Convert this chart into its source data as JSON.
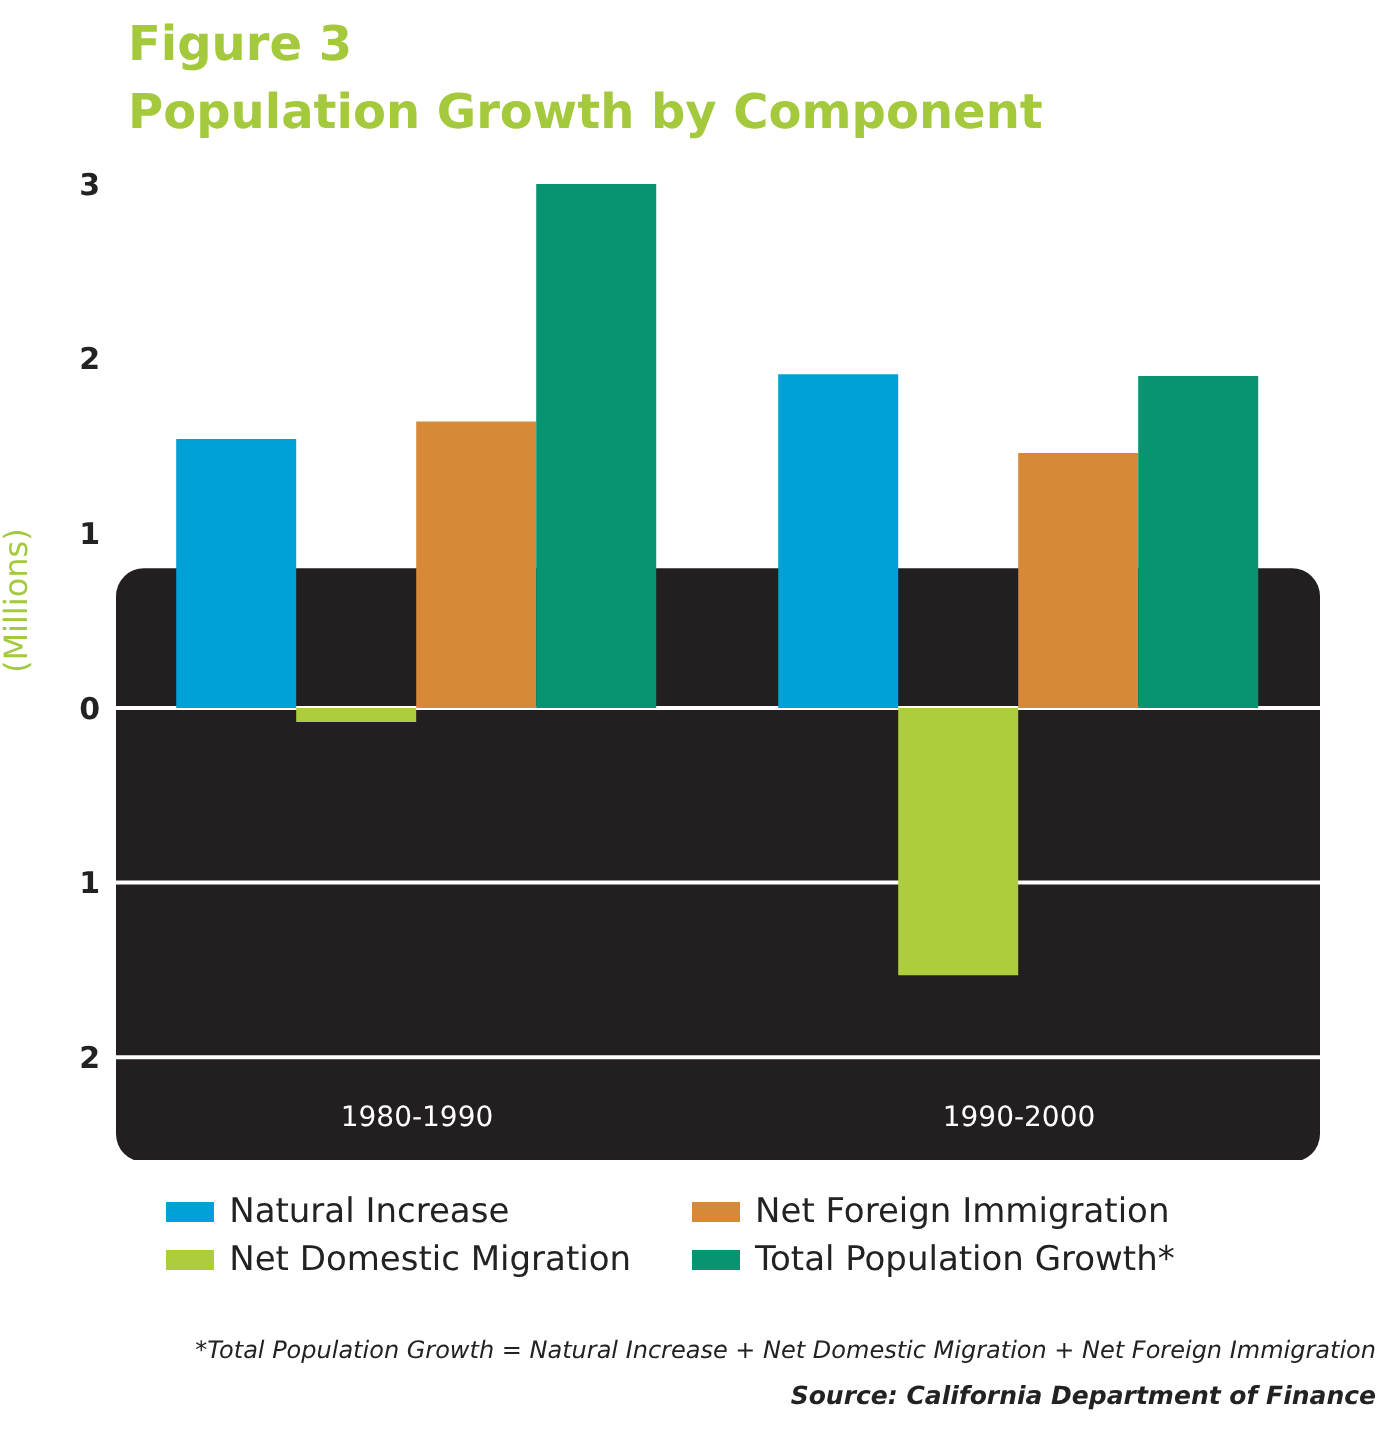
{
  "chart_data": {
    "type": "bar",
    "title": "Figure 3",
    "subtitle": "Population Growth by Component",
    "ylabel": "(Millions)",
    "categories": [
      "1980-1990",
      "1990-2000"
    ],
    "series": [
      {
        "name": "Natural Increase",
        "color": "#00a1d6",
        "values": [
          1.54,
          1.91
        ]
      },
      {
        "name": "Net Domestic Migration",
        "color": "#aecd3c",
        "values": [
          -0.08,
          -1.53
        ]
      },
      {
        "name": "Net Foreign Immigration",
        "color": "#d78939",
        "values": [
          1.64,
          1.46
        ]
      },
      {
        "name": "Total Population Growth*",
        "color": "#069471",
        "values": [
          3.0,
          1.9
        ]
      }
    ],
    "bands": [
      {
        "axis": "y",
        "from": -2.6,
        "to": 0.8,
        "color": "#231f20"
      }
    ],
    "ylim": [
      -2.6,
      3
    ],
    "yticks": [
      {
        "value": -2,
        "label": "2"
      },
      {
        "value": -1,
        "label": "1"
      },
      0,
      1,
      2,
      3
    ],
    "grid": "y",
    "legend": "bottom",
    "annotations": [
      "*Total Population Growth = Natural Increase + Net Domestic Migration + Net Foreign Immigration",
      "Source:  California Department of Finance"
    ]
  }
}
